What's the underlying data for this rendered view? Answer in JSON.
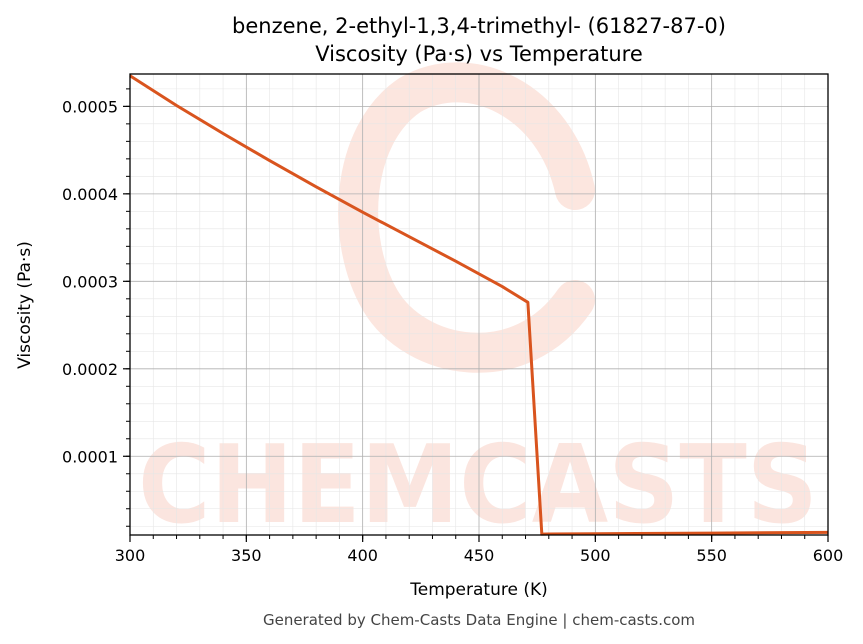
{
  "chart_data": {
    "type": "line",
    "title_line1": "benzene, 2-ethyl-1,3,4-trimethyl- (61827-87-0)",
    "title_line2": "Viscosity (Pa·s) vs Temperature",
    "xlabel": "Temperature (K)",
    "ylabel": "Viscosity (Pa·s)",
    "xlim": [
      300,
      600
    ],
    "ylim": [
      1e-05,
      0.000537
    ],
    "x_ticks": [
      300,
      350,
      400,
      450,
      500,
      550,
      600
    ],
    "y_ticks": [
      0.0001,
      0.0002,
      0.0003,
      0.0004,
      0.0005
    ],
    "y_tick_labels": [
      "0.0001",
      "0.0002",
      "0.0003",
      "0.0004",
      "0.0005"
    ],
    "grid": true,
    "color": "#d9541e",
    "watermark": "CHEMCASTS",
    "footer": "Generated by Chem-Casts Data Engine | chem-casts.com",
    "series": [
      {
        "x": [
          300,
          320,
          340,
          360,
          380,
          400,
          420,
          440,
          460,
          471,
          477,
          480,
          500,
          550,
          600
        ],
        "y": [
          0.000535,
          0.000501,
          0.000469,
          0.000438,
          0.000408,
          0.000379,
          0.000351,
          0.000323,
          0.000294,
          0.000276,
          1.1e-05,
          1.12e-05,
          1.15e-05,
          1.22e-05,
          1.3e-05
        ]
      }
    ]
  }
}
